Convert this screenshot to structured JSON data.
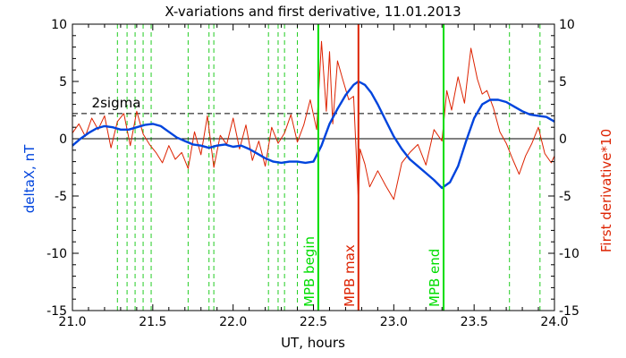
{
  "chart_data": {
    "type": "line",
    "title": "X-variations and first derivative, 11.01.2013",
    "xlabel": "UT, hours",
    "ylabel_left": "deltaX, nT",
    "ylabel_right": "First derivative*10",
    "xlim": [
      21.0,
      24.0
    ],
    "ylim": [
      -15,
      10
    ],
    "xticks": [
      "21.0",
      "21.5",
      "22.0",
      "22.5",
      "23.0",
      "23.5",
      "24.0"
    ],
    "yticks_left": [
      "10",
      "5",
      "0",
      "-5",
      "-10",
      "-15"
    ],
    "yticks_right": [
      "10",
      "5",
      "0",
      "-5",
      "-10",
      "-15"
    ],
    "zero_line": 0,
    "threshold": {
      "label": "2sigma",
      "value": 2.2
    },
    "dashed_vlines": [
      21.28,
      21.34,
      21.39,
      21.44,
      21.49,
      21.72,
      21.85,
      21.88,
      22.22,
      22.28,
      22.32,
      22.4,
      23.72,
      23.91
    ],
    "markers": [
      {
        "label": "MPB begin",
        "x": 22.53,
        "color": "#00dd00"
      },
      {
        "label": "MPB max",
        "x": 22.78,
        "color": "#dd2200"
      },
      {
        "label": "MPB end",
        "x": 23.31,
        "color": "#00dd00"
      }
    ],
    "series": [
      {
        "role": "deltaX",
        "color": "#0044dd",
        "x": [
          21.0,
          21.05,
          21.1,
          21.15,
          21.2,
          21.25,
          21.3,
          21.35,
          21.4,
          21.45,
          21.5,
          21.55,
          21.6,
          21.65,
          21.7,
          21.75,
          21.8,
          21.85,
          21.9,
          21.95,
          22.0,
          22.05,
          22.1,
          22.15,
          22.2,
          22.25,
          22.3,
          22.35,
          22.4,
          22.45,
          22.5,
          22.55,
          22.6,
          22.65,
          22.7,
          22.75,
          22.78,
          22.82,
          22.86,
          22.9,
          22.95,
          23.0,
          23.05,
          23.1,
          23.15,
          23.2,
          23.25,
          23.3,
          23.35,
          23.4,
          23.45,
          23.5,
          23.55,
          23.6,
          23.65,
          23.7,
          23.75,
          23.8,
          23.85,
          23.9,
          23.95,
          24.0
        ],
        "values": [
          -0.6,
          0.0,
          0.5,
          0.9,
          1.1,
          1.0,
          0.8,
          0.8,
          1.0,
          1.2,
          1.3,
          1.1,
          0.6,
          0.1,
          -0.2,
          -0.5,
          -0.6,
          -0.8,
          -0.6,
          -0.5,
          -0.7,
          -0.6,
          -0.9,
          -1.3,
          -1.7,
          -2.0,
          -2.1,
          -2.0,
          -2.0,
          -2.1,
          -2.0,
          -0.6,
          1.3,
          2.6,
          3.8,
          4.7,
          5.0,
          4.7,
          4.0,
          3.0,
          1.6,
          0.2,
          -0.9,
          -1.8,
          -2.4,
          -3.0,
          -3.6,
          -4.3,
          -3.8,
          -2.4,
          -0.2,
          1.8,
          3.0,
          3.4,
          3.4,
          3.2,
          2.8,
          2.4,
          2.1,
          2.0,
          1.9,
          1.5
        ]
      },
      {
        "role": "derivative",
        "color": "#dd2200",
        "x": [
          21.0,
          21.04,
          21.08,
          21.12,
          21.16,
          21.2,
          21.24,
          21.28,
          21.32,
          21.36,
          21.4,
          21.44,
          21.48,
          21.52,
          21.56,
          21.6,
          21.64,
          21.68,
          21.72,
          21.76,
          21.8,
          21.84,
          21.88,
          21.92,
          21.96,
          22.0,
          22.04,
          22.08,
          22.12,
          22.16,
          22.2,
          22.24,
          22.28,
          22.32,
          22.36,
          22.4,
          22.44,
          22.48,
          22.52,
          22.55,
          22.58,
          22.6,
          22.62,
          22.65,
          22.68,
          22.72,
          22.75,
          22.78,
          22.79,
          22.82,
          22.85,
          22.9,
          22.95,
          23.0,
          23.05,
          23.1,
          23.15,
          23.2,
          23.25,
          23.3,
          23.33,
          23.36,
          23.4,
          23.44,
          23.48,
          23.52,
          23.55,
          23.58,
          23.62,
          23.66,
          23.7,
          23.74,
          23.78,
          23.82,
          23.86,
          23.9,
          23.94,
          23.98,
          24.0
        ],
        "values": [
          0.5,
          1.3,
          0.2,
          1.8,
          0.8,
          2.0,
          -0.8,
          1.5,
          2.2,
          -0.6,
          2.4,
          0.4,
          -0.5,
          -1.2,
          -2.1,
          -0.6,
          -1.8,
          -1.2,
          -2.6,
          0.6,
          -1.4,
          2.0,
          -2.5,
          0.3,
          -0.5,
          1.8,
          -0.9,
          1.2,
          -1.9,
          -0.2,
          -2.4,
          1.0,
          -0.4,
          0.5,
          2.1,
          -0.3,
          1.2,
          3.4,
          0.8,
          8.5,
          2.4,
          7.6,
          1.3,
          6.8,
          5.3,
          3.4,
          3.7,
          -5.5,
          -0.9,
          -2.2,
          -4.2,
          -2.8,
          -4.1,
          -5.3,
          -2.1,
          -1.2,
          -0.5,
          -2.3,
          0.8,
          -0.2,
          4.2,
          2.5,
          5.4,
          3.1,
          7.9,
          5.2,
          3.9,
          4.2,
          2.7,
          0.6,
          -0.4,
          -1.8,
          -3.1,
          -1.5,
          -0.4,
          1.0,
          -1.3,
          -2.1,
          -1.5
        ]
      }
    ]
  }
}
